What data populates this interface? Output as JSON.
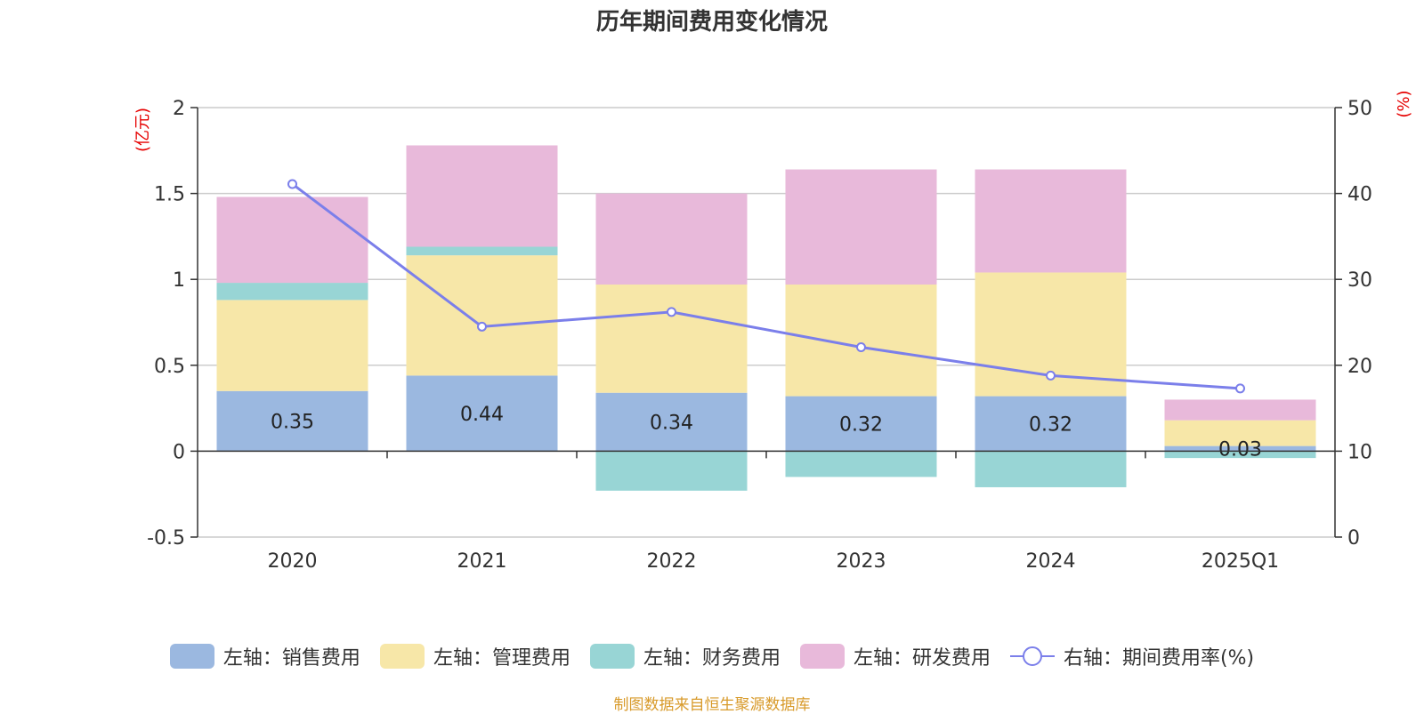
{
  "chart_data": {
    "type": "bar",
    "title": "历年期间费用变化情况",
    "categories": [
      "2020",
      "2021",
      "2022",
      "2023",
      "2024",
      "2025Q1"
    ],
    "stacked": true,
    "left_axis": {
      "unit_label": "(亿元)",
      "ylim": [
        -0.5,
        2
      ],
      "ticks": [
        "2",
        "1.5",
        "1",
        "0.5",
        "0",
        "-0.5"
      ],
      "tick_values": [
        2,
        1.5,
        1,
        0.5,
        0,
        -0.5
      ]
    },
    "right_axis": {
      "unit_label": "(%)",
      "ylim": [
        0,
        50
      ],
      "ticks": [
        "50",
        "40",
        "30",
        "20",
        "10",
        "0"
      ],
      "tick_values": [
        50,
        40,
        30,
        20,
        10,
        0
      ]
    },
    "series": [
      {
        "name": "左轴：销售费用",
        "axis": "left",
        "color": "#9bb8e0",
        "values": [
          0.35,
          0.44,
          0.34,
          0.32,
          0.32,
          0.03
        ],
        "data_labels": [
          "0.35",
          "0.44",
          "0.34",
          "0.32",
          "0.32",
          "0.03"
        ]
      },
      {
        "name": "左轴：管理费用",
        "axis": "left",
        "color": "#f7e7a8",
        "values": [
          0.53,
          0.7,
          0.63,
          0.65,
          0.72,
          0.15
        ]
      },
      {
        "name": "左轴：财务费用",
        "axis": "left",
        "color": "#98d5d5",
        "values": [
          0.1,
          0.05,
          -0.23,
          -0.15,
          -0.21,
          -0.04
        ]
      },
      {
        "name": "左轴：研发费用",
        "axis": "left",
        "color": "#e8b9da",
        "values": [
          0.5,
          0.59,
          0.53,
          0.67,
          0.6,
          0.12
        ]
      },
      {
        "name": "右轴：期间费用率(%)",
        "axis": "right",
        "type": "line",
        "color": "#7b7fea",
        "values": [
          41.1,
          24.5,
          26.2,
          22.1,
          18.8,
          17.3
        ]
      }
    ],
    "grid": true,
    "legend_position": "bottom"
  },
  "source_note": "制图数据来自恒生聚源数据库"
}
